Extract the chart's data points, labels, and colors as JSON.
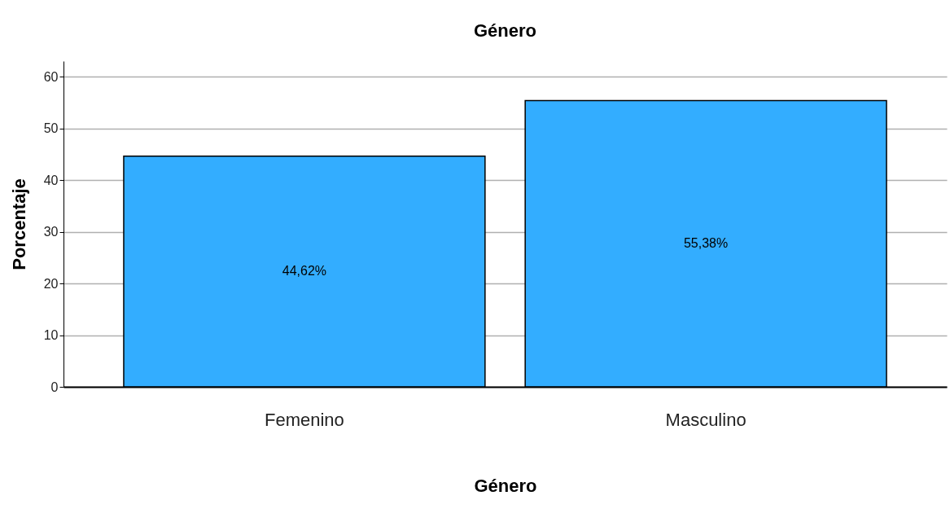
{
  "chart_data": {
    "type": "bar",
    "title": "Género",
    "xlabel": "Género",
    "ylabel": "Porcentaje",
    "categories": [
      "Femenino",
      "Masculino"
    ],
    "values": [
      44.62,
      55.38
    ],
    "value_labels": [
      "44,62%",
      "55,38%"
    ],
    "color": "#33adff",
    "ylim": [
      0,
      63
    ],
    "yticks": [
      0,
      10,
      20,
      30,
      40,
      50,
      60
    ],
    "grid": "y"
  }
}
